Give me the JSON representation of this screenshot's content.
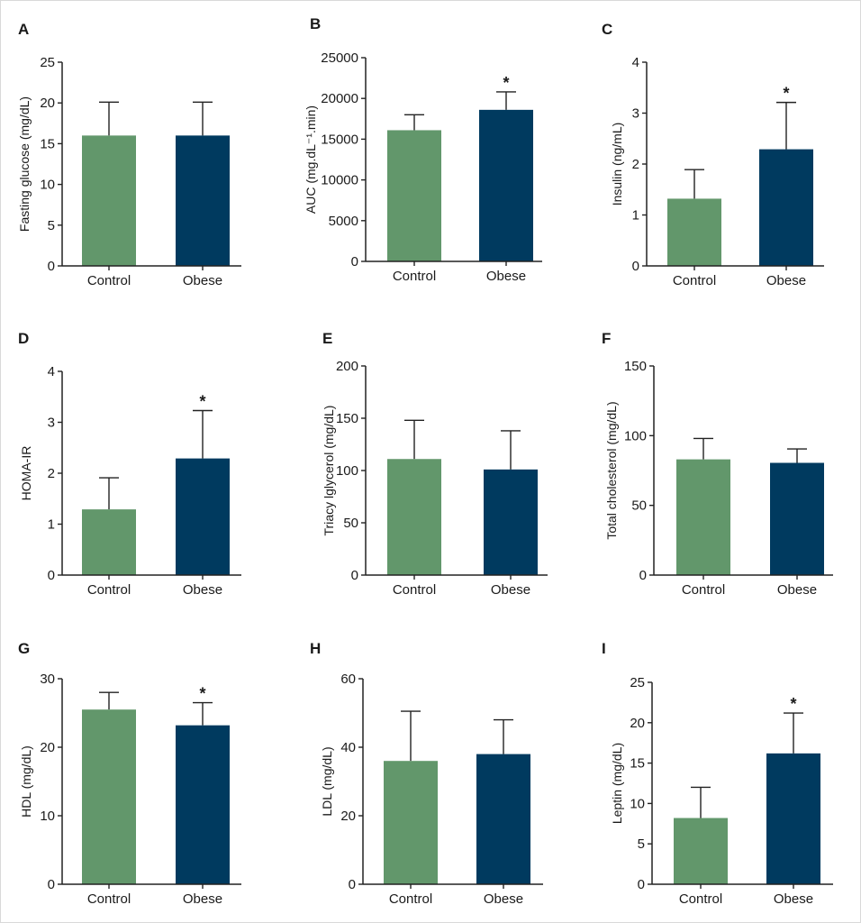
{
  "colors": {
    "control": "#62976b",
    "obese": "#003a5f",
    "axis": "#222222",
    "text": "#1a1a1a"
  },
  "chart_data": [
    {
      "panel": "A",
      "type": "bar",
      "categories": [
        "Control",
        "Obese"
      ],
      "values": [
        16,
        16
      ],
      "errors": [
        4.1,
        4.1
      ],
      "ylabel": "Fasting glucose (mg/dL)",
      "ylim": [
        0,
        25
      ],
      "yticks": [
        0,
        5,
        10,
        15,
        20,
        25
      ],
      "ytick_labels": [
        "0",
        "5",
        "10",
        "15",
        "20",
        "25"
      ],
      "significance": [
        "",
        ""
      ]
    },
    {
      "panel": "B",
      "type": "bar",
      "categories": [
        "Control",
        "Obese"
      ],
      "values": [
        16100,
        18600
      ],
      "errors": [
        1900,
        2200
      ],
      "ylabel": "AUC (mg.dL⁻¹.min)",
      "ylim": [
        0,
        25000
      ],
      "yticks": [
        0,
        5000,
        10000,
        15000,
        20000,
        25000
      ],
      "ytick_labels": [
        "0",
        "5000",
        "10000",
        "15000",
        "20000",
        "25000"
      ],
      "significance": [
        "",
        "*"
      ]
    },
    {
      "panel": "C",
      "type": "bar",
      "categories": [
        "Control",
        "Obese"
      ],
      "values": [
        1.32,
        2.29
      ],
      "errors": [
        0.57,
        0.92
      ],
      "ylabel": "Insulin (ng/mL)",
      "ylim": [
        0,
        4
      ],
      "yticks": [
        0,
        1,
        2,
        3,
        4
      ],
      "ytick_labels": [
        "0",
        "1",
        "2",
        "3",
        "4"
      ],
      "significance": [
        "",
        "*"
      ]
    },
    {
      "panel": "D",
      "type": "bar",
      "categories": [
        "Control",
        "Obese"
      ],
      "values": [
        1.29,
        2.29
      ],
      "errors": [
        0.62,
        0.94
      ],
      "ylabel": "HOMA-IR",
      "ylim": [
        0,
        4
      ],
      "yticks": [
        0,
        1,
        2,
        3,
        4
      ],
      "ytick_labels": [
        "0",
        "1",
        "2",
        "3",
        "4"
      ],
      "significance": [
        "",
        "*"
      ]
    },
    {
      "panel": "E",
      "type": "bar",
      "categories": [
        "Control",
        "Obese"
      ],
      "values": [
        111,
        101
      ],
      "errors": [
        37,
        37
      ],
      "ylabel": "Triacy lglycerol (mg/dL)",
      "ylim": [
        0,
        200
      ],
      "yticks": [
        0,
        50,
        100,
        150,
        200
      ],
      "ytick_labels": [
        "0",
        "50",
        "100",
        "150",
        "200"
      ],
      "significance": [
        "",
        ""
      ]
    },
    {
      "panel": "F",
      "type": "bar",
      "categories": [
        "Control",
        "Obese"
      ],
      "values": [
        83,
        80.5
      ],
      "errors": [
        15,
        10
      ],
      "ylabel": "Total cholesterol (mg/dL)",
      "ylim": [
        0,
        150
      ],
      "yticks": [
        0,
        50,
        100,
        150
      ],
      "ytick_labels": [
        "0",
        "50",
        "100",
        "150"
      ],
      "significance": [
        "",
        ""
      ]
    },
    {
      "panel": "G",
      "type": "bar",
      "categories": [
        "Control",
        "Obese"
      ],
      "values": [
        25.5,
        23.2
      ],
      "errors": [
        2.5,
        3.3
      ],
      "ylabel": "HDL (mg/dL)",
      "ylim": [
        0,
        30
      ],
      "yticks": [
        0,
        10,
        20,
        30
      ],
      "ytick_labels": [
        "0",
        "10",
        "20",
        "30"
      ],
      "significance": [
        "",
        "*"
      ]
    },
    {
      "panel": "H",
      "type": "bar",
      "categories": [
        "Control",
        "Obese"
      ],
      "values": [
        36,
        38
      ],
      "errors": [
        14.5,
        10
      ],
      "ylabel": "LDL (mg/dL)",
      "ylim": [
        0,
        60
      ],
      "yticks": [
        0,
        20,
        40,
        60
      ],
      "ytick_labels": [
        "0",
        "20",
        "40",
        "60"
      ],
      "significance": [
        "",
        ""
      ]
    },
    {
      "panel": "I",
      "type": "bar",
      "categories": [
        "Control",
        "Obese"
      ],
      "values": [
        8.2,
        16.2
      ],
      "errors": [
        3.8,
        5
      ],
      "ylabel": "Leptin (mg/dL)",
      "ylim": [
        0,
        25
      ],
      "yticks": [
        0,
        5,
        10,
        15,
        20,
        25
      ],
      "ytick_labels": [
        "0",
        "5",
        "10",
        "15",
        "20",
        "25"
      ],
      "significance": [
        "",
        "*"
      ]
    }
  ]
}
